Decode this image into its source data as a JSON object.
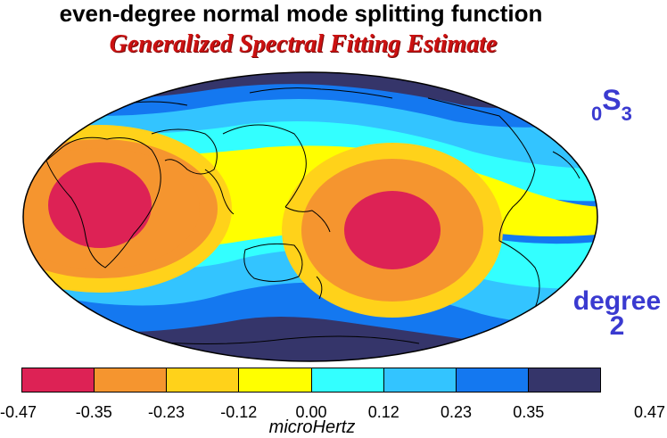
{
  "header": {
    "title": "even-degree normal mode splitting function",
    "subtitle": "Generalized Spectral Fitting Estimate"
  },
  "mode": {
    "pre": "0",
    "main": "S",
    "post": "3"
  },
  "degree": {
    "line1": "degree",
    "line2": "2"
  },
  "colorbar": {
    "ticks": [
      "-0.47",
      "-0.35",
      "-0.23",
      "-0.12",
      "0.00",
      "0.12",
      "0.23",
      "0.35",
      "0.47"
    ],
    "colors": [
      "#dd2255",
      "#f5952f",
      "#ffd21a",
      "#ffff00",
      "#33ffff",
      "#33c4ff",
      "#1478f0",
      "#35356a"
    ],
    "unit": "microHertz"
  }
}
